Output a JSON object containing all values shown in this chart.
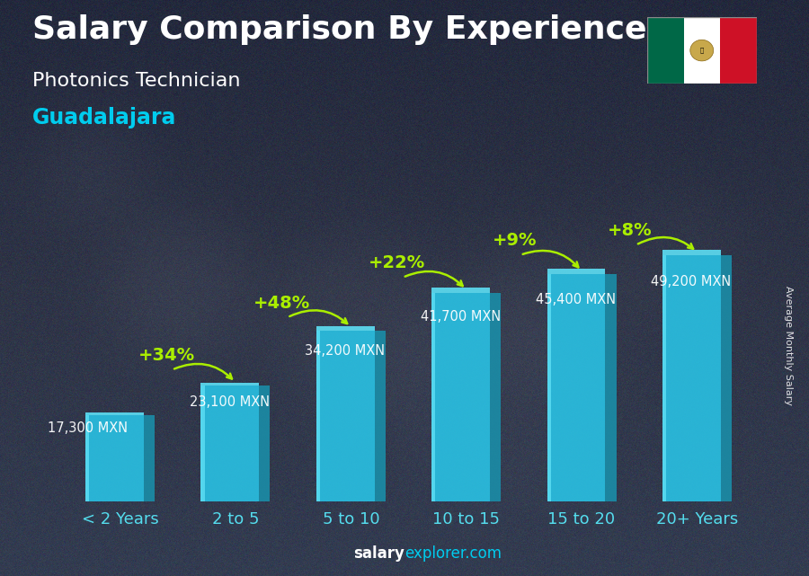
{
  "title": "Salary Comparison By Experience",
  "subtitle": "Photonics Technician",
  "city": "Guadalajara",
  "ylabel": "Average Monthly Salary",
  "categories": [
    "< 2 Years",
    "2 to 5",
    "5 to 10",
    "10 to 15",
    "15 to 20",
    "20+ Years"
  ],
  "values": [
    17300,
    23100,
    34200,
    41700,
    45400,
    49200
  ],
  "value_labels": [
    "17,300 MXN",
    "23,100 MXN",
    "34,200 MXN",
    "41,700 MXN",
    "45,400 MXN",
    "49,200 MXN"
  ],
  "pct_changes": [
    "+34%",
    "+48%",
    "+22%",
    "+9%",
    "+8%"
  ],
  "bar_face_color": "#29C5E8",
  "bar_side_color": "#1A8FAA",
  "bar_top_color": "#5DDFF5",
  "bar_highlight_color": "#70EEFF",
  "bg_color": "#4a5870",
  "overlay_color": "#2a3348",
  "title_color": "#FFFFFF",
  "subtitle_color": "#FFFFFF",
  "city_color": "#00CCEE",
  "value_color": "#FFFFFF",
  "pct_color": "#AAEE00",
  "xlabel_color": "#55DDEE",
  "footer_salary_color": "#FFFFFF",
  "footer_explorer_color": "#00CCEE",
  "ylim": [
    0,
    60000
  ],
  "title_fontsize": 26,
  "subtitle_fontsize": 16,
  "city_fontsize": 17,
  "value_fontsize": 10.5,
  "pct_fontsize": 14,
  "cat_fontsize": 13,
  "footer_fontsize": 12,
  "ylabel_fontsize": 8,
  "flag_colors": [
    "#006847",
    "#FFFFFF",
    "#CE1126"
  ]
}
